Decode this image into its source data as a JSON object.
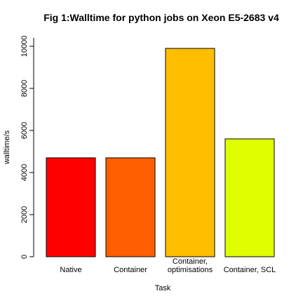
{
  "chart_data": {
    "type": "bar",
    "title": "Fig 1:Walltime for python jobs on Xeon E5-2683 v4",
    "xlabel": "Task",
    "ylabel": "walltime/s",
    "categories": [
      [
        "Native"
      ],
      [
        "Container"
      ],
      [
        "Container,",
        "optimisations"
      ],
      [
        "Container, SCL"
      ]
    ],
    "values": [
      4700,
      4700,
      9900,
      5600
    ],
    "colors": [
      "#ff0000",
      "#ff5f00",
      "#ffbf00",
      "#dfff00"
    ],
    "yticks": [
      "0",
      "2000",
      "4000",
      "6000",
      "8000",
      "10000"
    ],
    "ylim": [
      0,
      10400
    ],
    "grid": false,
    "legend": "none"
  }
}
